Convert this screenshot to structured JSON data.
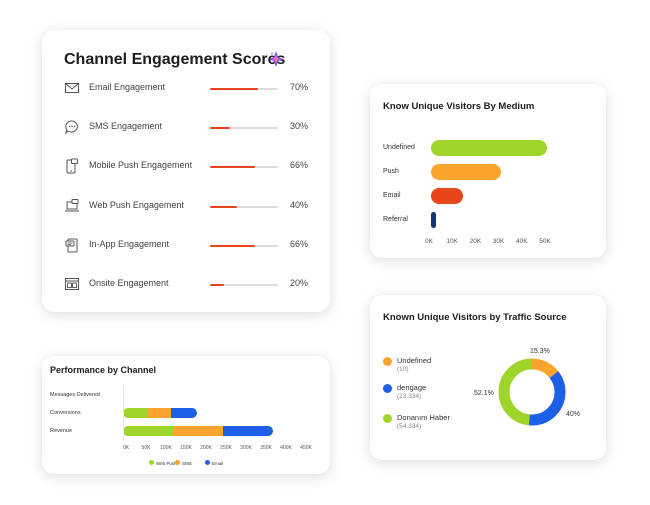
{
  "engagement": {
    "title": "Channel Engagement Scores",
    "rows": [
      {
        "icon": "envelope-icon",
        "label": "Email Engagement",
        "percent": 70,
        "value": "70%"
      },
      {
        "icon": "chat-bubble-icon",
        "label": "SMS Engagement",
        "percent": 30,
        "value": "30%"
      },
      {
        "icon": "mobile-push-icon",
        "label": "Mobile Push Engagement",
        "percent": 66,
        "value": "66%"
      },
      {
        "icon": "web-push-icon",
        "label": "Web Push Engagement",
        "percent": 40,
        "value": "40%"
      },
      {
        "icon": "in-app-icon",
        "label": "In-App Engagement",
        "percent": 66,
        "value": "66%"
      },
      {
        "icon": "onsite-icon",
        "label": "Onsite Engagement",
        "percent": 20,
        "value": "20%"
      }
    ],
    "accent_color": "#e8461a"
  },
  "chart_data": [
    {
      "type": "bar",
      "orientation": "horizontal",
      "title": "Know Unique Visitors By Medium",
      "categories": [
        "Undefined",
        "Push",
        "Email",
        "Referral"
      ],
      "values": [
        50000,
        30000,
        14000,
        1500
      ],
      "colors": [
        "#9fd52a",
        "#fba42d",
        "#e8461a",
        "#13337a"
      ],
      "xlim": [
        0,
        55000
      ],
      "xticks": [
        "0K",
        "10K",
        "20K",
        "30K",
        "40K",
        "50K"
      ]
    },
    {
      "type": "pie",
      "title": "Known Unique Visitors by Traffic Source",
      "slices": [
        {
          "name": "Undefined",
          "count": "(10)",
          "percent": 15.3,
          "label": "15.3%",
          "color": "#fba42d"
        },
        {
          "name": "dengage",
          "count": "(23.334)",
          "percent": 40,
          "label": "40%",
          "color": "#1d5fe6"
        },
        {
          "name": "Donanım Haber",
          "count": "(54.334)",
          "percent": 52.1,
          "label": "52.1%",
          "color": "#9fd52a"
        }
      ]
    },
    {
      "type": "bar",
      "orientation": "horizontal-stacked",
      "title": "Performance by Channel",
      "categories": [
        "Messages Delivered",
        "Conversions",
        "Revenue"
      ],
      "series": [
        {
          "name": "Web Push",
          "color": "#9fd52a",
          "values": [
            1000,
            60000,
            125000
          ]
        },
        {
          "name": "SMS",
          "color": "#fba42d",
          "values": [
            0,
            60000,
            125000
          ]
        },
        {
          "name": "Email",
          "color": "#1d5fe6",
          "values": [
            0,
            65000,
            125000
          ]
        }
      ],
      "xlim": [
        0,
        450000
      ],
      "xticks": [
        "0K",
        "50K",
        "100K",
        "150K",
        "200K",
        "250K",
        "300K",
        "350K",
        "400K",
        "450K"
      ]
    }
  ]
}
